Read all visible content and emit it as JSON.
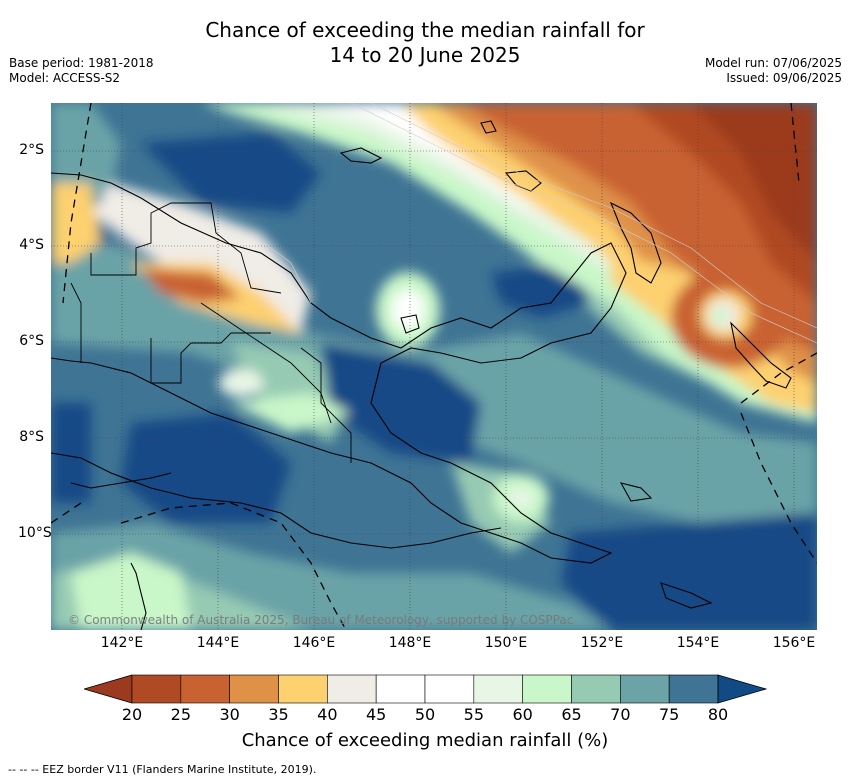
{
  "title_line1": "Chance of exceeding the median rainfall for",
  "title_line2": "14 to 20 June 2025",
  "base_period": "Base period: 1981-2018",
  "model": "Model: ACCESS-S2",
  "model_run": "Model run: 07/06/2025",
  "issued": "Issued: 09/06/2025",
  "lat_ticks": [
    "2°S",
    "4°S",
    "6°S",
    "8°S",
    "10°S"
  ],
  "lon_ticks": [
    "142°E",
    "144°E",
    "146°E",
    "148°E",
    "150°E",
    "152°E",
    "154°E",
    "156°E"
  ],
  "copyright": "© Commonwealth of Australia 2025, Bureau of Meteorology, supported by COSPPac",
  "colorbar": {
    "labels": [
      "20",
      "25",
      "30",
      "35",
      "40",
      "45",
      "50",
      "55",
      "60",
      "65",
      "70",
      "75",
      "80"
    ],
    "colors": [
      "#9b3a1e",
      "#b04a24",
      "#c96231",
      "#df9148",
      "#fdd070",
      "#f0ece6",
      "#ffffff",
      "#ffffff",
      "#e8f6e6",
      "#c9f7c9",
      "#96cab3",
      "#6ba3a7",
      "#3f7494",
      "#124a86"
    ],
    "title": "Chance of exceeding median rainfall (%)"
  },
  "footnote": "--  --  -- EEZ border V11 (Flanders Marine Institute, 2019)."
}
